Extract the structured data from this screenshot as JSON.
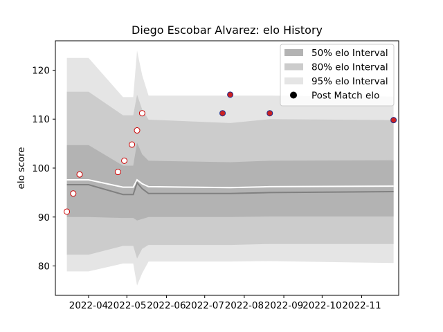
{
  "chart_data": {
    "type": "line",
    "title": "Diego Escobar Alvarez: elo History",
    "xlabel": "",
    "ylabel": "elo score",
    "x_axis_type": "date",
    "xlim": [
      "2022-03-06",
      "2022-11-30"
    ],
    "ylim": [
      74,
      126
    ],
    "x_tick_labels": [
      "2022-04",
      "2022-05",
      "2022-06",
      "2022-07",
      "2022-08",
      "2022-09",
      "2022-10",
      "2022-11"
    ],
    "x_ticks": [
      "2022-04-01",
      "2022-05-01",
      "2022-06-01",
      "2022-07-01",
      "2022-08-01",
      "2022-09-01",
      "2022-10-01",
      "2022-11-01"
    ],
    "y_ticks": [
      80,
      90,
      100,
      110,
      120
    ],
    "grid": false,
    "legend_position": "top-right",
    "legend": [
      {
        "label": "50% elo Interval",
        "kind": "band",
        "color": "#b3b3b3"
      },
      {
        "label": "80% elo Interval",
        "kind": "band",
        "color": "#cccccc"
      },
      {
        "label": "95% elo Interval",
        "kind": "band",
        "color": "#e5e5e5"
      },
      {
        "label": "Post Match elo",
        "kind": "marker",
        "color": "#000000"
      }
    ],
    "band_x": [
      "2022-03-15",
      "2022-03-23",
      "2022-04-01",
      "2022-04-28",
      "2022-05-06",
      "2022-05-09",
      "2022-05-13",
      "2022-05-18",
      "2022-07-21",
      "2022-08-21",
      "2022-11-26"
    ],
    "series": [
      {
        "role": "95% upper",
        "values": [
          122.5,
          122.5,
          122.5,
          114.5,
          114.5,
          124.0,
          119.0,
          114.8,
          114.8,
          114.8,
          114.6
        ]
      },
      {
        "role": "95% lower",
        "values": [
          78.9,
          78.9,
          78.9,
          80.5,
          80.5,
          76.0,
          78.5,
          80.9,
          80.9,
          81.0,
          80.6
        ]
      },
      {
        "role": "80% upper",
        "values": [
          115.6,
          115.6,
          115.6,
          110.8,
          110.8,
          115.0,
          112.0,
          109.9,
          109.2,
          110.0,
          109.8
        ]
      },
      {
        "role": "80% lower",
        "values": [
          82.3,
          82.3,
          82.3,
          84.1,
          84.1,
          81.5,
          83.5,
          84.3,
          84.3,
          84.5,
          84.5
        ]
      },
      {
        "role": "50% upper",
        "values": [
          104.7,
          104.7,
          104.7,
          100.5,
          100.5,
          105.2,
          102.8,
          101.5,
          101.2,
          101.5,
          101.6
        ]
      },
      {
        "role": "50% lower",
        "values": [
          90.0,
          90.0,
          90.0,
          89.8,
          89.8,
          89.3,
          89.6,
          90.0,
          90.0,
          90.1,
          90.1
        ]
      },
      {
        "role": "mean line",
        "color": "#ffffff",
        "values": [
          97.6,
          97.6,
          97.6,
          96.1,
          96.1,
          97.6,
          96.8,
          96.2,
          96.0,
          96.2,
          96.3
        ]
      },
      {
        "role": "median line",
        "color": "#808080",
        "values": [
          96.6,
          96.6,
          96.6,
          94.6,
          94.6,
          97.0,
          95.8,
          94.8,
          94.8,
          95.0,
          95.2
        ]
      }
    ],
    "points": [
      {
        "x": "2022-03-15",
        "y": 91.1,
        "fill": "#ffffff",
        "edge": "#cc0000"
      },
      {
        "x": "2022-03-20",
        "y": 94.8,
        "fill": "#ffffff",
        "edge": "#cc0000"
      },
      {
        "x": "2022-03-25",
        "y": 98.7,
        "fill": "#ffffff",
        "edge": "#cc0000"
      },
      {
        "x": "2022-04-24",
        "y": 99.2,
        "fill": "#ffffff",
        "edge": "#cc0000"
      },
      {
        "x": "2022-04-29",
        "y": 101.5,
        "fill": "#ffffff",
        "edge": "#cc0000"
      },
      {
        "x": "2022-05-05",
        "y": 104.8,
        "fill": "#ffffff",
        "edge": "#cc0000"
      },
      {
        "x": "2022-05-09",
        "y": 107.7,
        "fill": "#ffffff",
        "edge": "#cc0000"
      },
      {
        "x": "2022-05-13",
        "y": 111.2,
        "fill": "#ffffff",
        "edge": "#cc0000"
      },
      {
        "x": "2022-07-15",
        "y": 111.2,
        "fill": "#cc2222",
        "edge": "#1f2a8a"
      },
      {
        "x": "2022-07-21",
        "y": 115.0,
        "fill": "#cc2222",
        "edge": "#1f2a8a"
      },
      {
        "x": "2022-08-21",
        "y": 111.2,
        "fill": "#cc2222",
        "edge": "#1f2a8a"
      },
      {
        "x": "2022-11-26",
        "y": 109.8,
        "fill": "#cc2222",
        "edge": "#1f2a8a"
      }
    ]
  }
}
